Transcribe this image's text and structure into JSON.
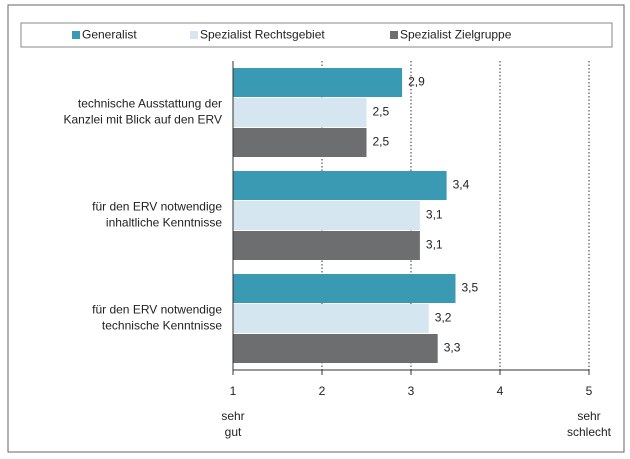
{
  "chart_data": {
    "type": "barh",
    "categories": [
      "technische Ausstattung der\nKanzlei mit Blick auf den ERV",
      "für den ERV notwendige\ninhaltliche Kenntnisse",
      "für den ERV notwendige\ntechnische Kenntnisse"
    ],
    "series": [
      {
        "name": "Generalist",
        "color": "#3a9ab4",
        "values": [
          2.9,
          3.4,
          3.5
        ],
        "value_labels": [
          "2,9",
          "3,4",
          "3,5"
        ]
      },
      {
        "name": "Spezialist Rechtsgebiet",
        "color": "#d6e6f0",
        "values": [
          2.5,
          3.1,
          3.2
        ],
        "value_labels": [
          "2,5",
          "3,1",
          "3,2"
        ]
      },
      {
        "name": "Spezialist Zielgruppe",
        "color": "#6d6e70",
        "values": [
          2.5,
          3.1,
          3.3
        ],
        "value_labels": [
          "2,5",
          "3,1",
          "3,3"
        ]
      }
    ],
    "xlim": [
      1,
      5
    ],
    "xticks": [
      1,
      2,
      3,
      4,
      5
    ],
    "grid": true,
    "legend": "top",
    "annotations": [
      {
        "text": "sehr\ngut",
        "x": 1
      },
      {
        "text": "sehr\nschlecht",
        "x": 5
      }
    ]
  }
}
